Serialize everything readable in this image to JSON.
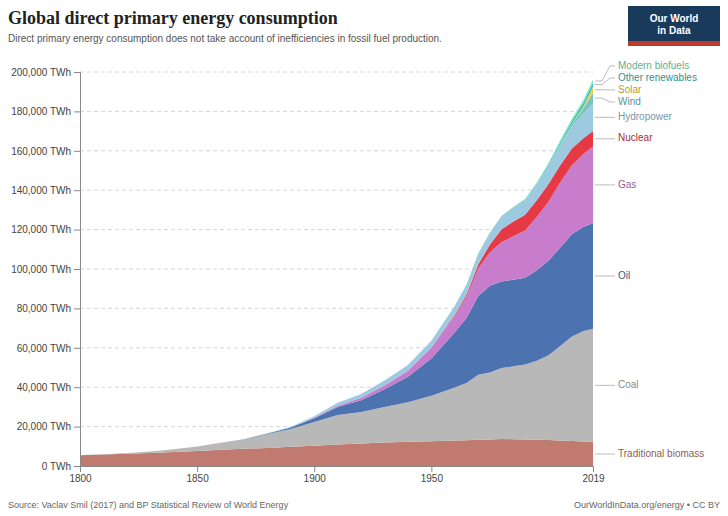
{
  "chart_data": {
    "type": "area",
    "stacked": true,
    "title": "Global direct primary energy consumption",
    "subtitle": "Direct primary energy consumption does not take account of inefficiencies in fossil fuel production.",
    "annotations": [
      "Source: Vaclav Smil (2017) and BP Statistical Review of World Energy",
      "OurWorldInData.org/energy • CC BY",
      "Our World\nin Data"
    ],
    "x": [
      1800,
      1810,
      1820,
      1830,
      1840,
      1850,
      1860,
      1870,
      1880,
      1890,
      1900,
      1910,
      1920,
      1930,
      1940,
      1950,
      1960,
      1965,
      1970,
      1975,
      1980,
      1985,
      1990,
      1995,
      2000,
      2005,
      2010,
      2015,
      2019
    ],
    "series": [
      {
        "name": "Traditional biomass",
        "color": "#c17a6f",
        "values": [
          5500,
          5800,
          6200,
          6600,
          7100,
          7600,
          8200,
          8700,
          9200,
          9800,
          10300,
          10900,
          11400,
          11900,
          12300,
          12600,
          12900,
          13100,
          13300,
          13500,
          13700,
          13600,
          13500,
          13400,
          13200,
          12900,
          12700,
          12500,
          12200
        ]
      },
      {
        "name": "Coal",
        "color": "#b8b8b8",
        "values": [
          100,
          200,
          450,
          800,
          1400,
          2300,
          3500,
          4800,
          7000,
          9000,
          12000,
          15000,
          16000,
          18000,
          20000,
          23000,
          27000,
          29000,
          33000,
          34000,
          36000,
          37000,
          38000,
          40000,
          43000,
          48000,
          53000,
          56000,
          57500
        ]
      },
      {
        "name": "Oil",
        "color": "#4c72b0",
        "values": [
          0,
          0,
          0,
          0,
          0,
          10,
          30,
          100,
          300,
          700,
          2000,
          4000,
          6000,
          9000,
          13000,
          19000,
          28000,
          33000,
          40000,
          44000,
          44000,
          44000,
          44000,
          46000,
          48000,
          50000,
          52000,
          53000,
          53500
        ]
      },
      {
        "name": "Gas",
        "color": "#c77dcc",
        "values": [
          0,
          0,
          0,
          0,
          0,
          0,
          10,
          20,
          50,
          100,
          300,
          700,
          1200,
          2000,
          3000,
          5500,
          8500,
          11000,
          14000,
          17000,
          20000,
          22000,
          24000,
          27000,
          30000,
          33000,
          35000,
          37000,
          39000
        ]
      },
      {
        "name": "Nuclear",
        "color": "#e63946",
        "values": [
          0,
          0,
          0,
          0,
          0,
          0,
          0,
          0,
          0,
          0,
          0,
          0,
          0,
          0,
          0,
          0,
          500,
          1000,
          2000,
          4000,
          6500,
          7500,
          8000,
          8500,
          9000,
          8800,
          8500,
          8000,
          7800
        ]
      },
      {
        "name": "Hydropower",
        "color": "#9ecae1",
        "values": [
          0,
          0,
          0,
          0,
          0,
          0,
          0,
          0,
          100,
          300,
          700,
          1500,
          2000,
          2500,
          3000,
          3500,
          4500,
          5000,
          5500,
          6000,
          6500,
          7000,
          7500,
          8000,
          9000,
          10000,
          11000,
          12500,
          14000
        ]
      },
      {
        "name": "Wind",
        "color": "#74c6c5",
        "values": [
          0,
          0,
          0,
          0,
          0,
          0,
          0,
          0,
          0,
          0,
          0,
          0,
          0,
          0,
          0,
          0,
          0,
          0,
          0,
          0,
          0,
          10,
          20,
          80,
          200,
          500,
          1100,
          2800,
          5500
        ]
      },
      {
        "name": "Solar",
        "color": "#f4d03f",
        "values": [
          0,
          0,
          0,
          0,
          0,
          0,
          0,
          0,
          0,
          0,
          0,
          0,
          0,
          0,
          0,
          0,
          0,
          0,
          0,
          0,
          0,
          5,
          10,
          20,
          40,
          100,
          300,
          1000,
          3000
        ]
      },
      {
        "name": "Other renewables",
        "color": "#3fc1c0",
        "values": [
          0,
          0,
          0,
          0,
          0,
          0,
          0,
          0,
          0,
          0,
          0,
          0,
          0,
          0,
          0,
          0,
          0,
          0,
          50,
          80,
          150,
          200,
          300,
          450,
          700,
          1100,
          1500,
          1900,
          2200
        ]
      },
      {
        "name": "Modern biofuels",
        "color": "#80e8c0",
        "values": [
          0,
          0,
          0,
          0,
          0,
          0,
          0,
          0,
          0,
          0,
          0,
          0,
          0,
          0,
          0,
          0,
          0,
          0,
          0,
          0,
          100,
          200,
          300,
          450,
          700,
          900,
          1200,
          1400,
          1500
        ]
      }
    ],
    "xlim": [
      1800,
      2019
    ],
    "xticks": [
      1800,
      1850,
      1900,
      1950,
      2019
    ],
    "ylim": [
      0,
      200000
    ],
    "yticks": [
      {
        "value": 0,
        "label": "0 TWh"
      },
      {
        "value": 20000,
        "label": "20,000 TWh"
      },
      {
        "value": 40000,
        "label": "40,000 TWh"
      },
      {
        "value": 60000,
        "label": "60,000 TWh"
      },
      {
        "value": 80000,
        "label": "80,000 TWh"
      },
      {
        "value": 100000,
        "label": "100,000 TWh"
      },
      {
        "value": 120000,
        "label": "120,000 TWh"
      },
      {
        "value": 140000,
        "label": "140,000 TWh"
      },
      {
        "value": 160000,
        "label": "160,000 TWh"
      },
      {
        "value": 180000,
        "label": "180,000 TWh"
      },
      {
        "value": 200000,
        "label": "200,000 TWh"
      }
    ],
    "grid": true,
    "legend": "right"
  }
}
